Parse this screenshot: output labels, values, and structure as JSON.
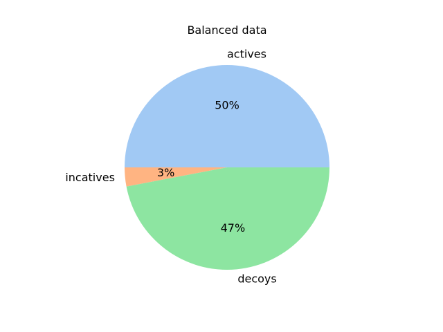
{
  "chart_data": {
    "type": "pie",
    "title": "Balanced data",
    "start_angle_deg": 0,
    "direction": "counterclockwise",
    "slices": [
      {
        "label": "actives",
        "value": 50,
        "pct_label": "50%",
        "color": "#a1c9f4"
      },
      {
        "label": "incatives",
        "value": 3,
        "pct_label": "3%",
        "color": "#ffb482"
      },
      {
        "label": "decoys",
        "value": 47,
        "pct_label": "47%",
        "color": "#8de5a1"
      }
    ]
  }
}
